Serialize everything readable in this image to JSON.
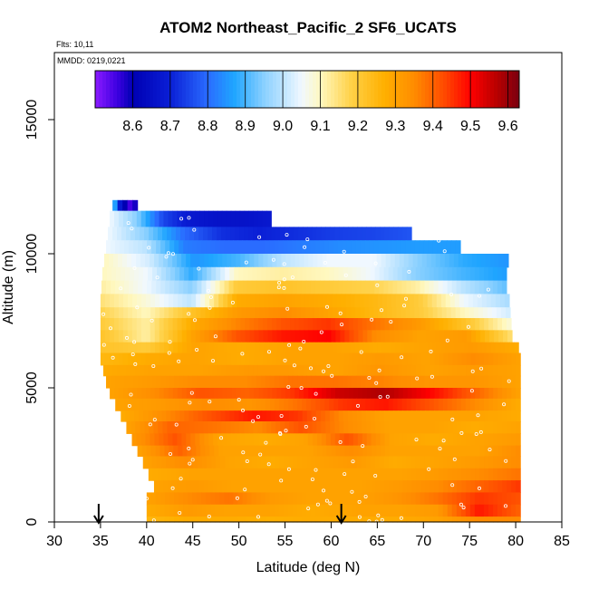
{
  "chart_data": {
    "type": "heatmap",
    "title": "ATOM2 Northeast_Pacific_2 SF6_UCATS",
    "flights_label": "Flts: 10,11",
    "mmdd_label": "MMDD: 0219,0221",
    "xlabel": "Latitude (deg N)",
    "ylabel": "Altitude (m)",
    "xlim": [
      30,
      85
    ],
    "ylim": [
      0,
      17500
    ],
    "x_ticks": [
      "30",
      "35",
      "40",
      "45",
      "50",
      "55",
      "60",
      "65",
      "70",
      "75",
      "80",
      "85"
    ],
    "y_ticks": [
      "0",
      "5000",
      "10000",
      "15000"
    ],
    "colorbar": {
      "min": 8.5,
      "max": 9.63,
      "ticks": [
        "8.6",
        "8.7",
        "8.8",
        "8.9",
        "9.0",
        "9.1",
        "9.2",
        "9.3",
        "9.4",
        "9.5",
        "9.6"
      ],
      "stops": [
        [
          8.5,
          "#8c1aff"
        ],
        [
          8.56,
          "#3b00e0"
        ],
        [
          8.6,
          "#0000b3"
        ],
        [
          8.7,
          "#0a1fd6"
        ],
        [
          8.8,
          "#2a6cff"
        ],
        [
          8.87,
          "#1fa5ff"
        ],
        [
          8.95,
          "#8ad0ff"
        ],
        [
          9.05,
          "#f0f8ff"
        ],
        [
          9.1,
          "#fff8c0"
        ],
        [
          9.18,
          "#ffd24a"
        ],
        [
          9.27,
          "#ffb000"
        ],
        [
          9.35,
          "#ff8c00"
        ],
        [
          9.43,
          "#ff4a00"
        ],
        [
          9.5,
          "#ff0000"
        ],
        [
          9.57,
          "#b80000"
        ],
        [
          9.63,
          "#7a0010"
        ]
      ]
    },
    "arrows_at_latitude": [
      34.8,
      61.1
    ],
    "layers": [
      {
        "alt_bottom": 11600,
        "alt_top": 12000,
        "lat_start": 36.3,
        "lat_end": 39.0,
        "values": [
          8.95,
          8.65,
          8.55,
          8.6
        ]
      },
      {
        "alt_bottom": 11000,
        "alt_top": 11600,
        "lat_start": 36.0,
        "lat_end": 53.5,
        "values": [
          9.05,
          8.95,
          8.75,
          8.68,
          8.66,
          8.66,
          8.68
        ]
      },
      {
        "alt_bottom": 10500,
        "alt_top": 11000,
        "lat_start": 35.8,
        "lat_end": 68.7,
        "values": [
          9.05,
          8.95,
          8.8,
          8.72,
          8.7,
          8.72,
          8.74,
          8.75,
          8.77
        ]
      },
      {
        "alt_bottom": 10000,
        "alt_top": 10500,
        "lat_start": 35.6,
        "lat_end": 74.0,
        "values": [
          9.05,
          9.0,
          8.82,
          8.8,
          8.8,
          8.82,
          8.84,
          8.85,
          8.86,
          8.86
        ]
      },
      {
        "alt_bottom": 9500,
        "alt_top": 10000,
        "lat_start": 35.4,
        "lat_end": 79.2,
        "values": [
          9.1,
          9.02,
          8.85,
          8.9,
          9.0,
          9.05,
          9.05,
          8.95,
          8.88,
          8.85
        ]
      },
      {
        "alt_bottom": 9000,
        "alt_top": 9500,
        "lat_start": 35.2,
        "lat_end": 79.0,
        "values": [
          9.1,
          9.05,
          8.88,
          9.1,
          9.12,
          9.1,
          9.05,
          8.95,
          8.9,
          8.86
        ]
      },
      {
        "alt_bottom": 8500,
        "alt_top": 9000,
        "lat_start": 35.1,
        "lat_end": 79.0,
        "values": [
          9.12,
          9.05,
          8.95,
          9.2,
          9.22,
          9.2,
          9.18,
          9.12,
          9.0,
          8.92
        ]
      },
      {
        "alt_bottom": 8000,
        "alt_top": 8500,
        "lat_start": 35.0,
        "lat_end": 79.3,
        "values": [
          9.15,
          9.08,
          9.0,
          9.28,
          9.3,
          9.28,
          9.25,
          9.2,
          9.05,
          8.98
        ]
      },
      {
        "alt_bottom": 7600,
        "alt_top": 8000,
        "lat_start": 35.0,
        "lat_end": 79.4,
        "values": [
          9.18,
          9.1,
          9.22,
          9.32,
          9.35,
          9.3,
          9.25,
          9.2,
          9.1,
          9.02
        ]
      },
      {
        "alt_bottom": 7150,
        "alt_top": 7600,
        "lat_start": 35.0,
        "lat_end": 79.5,
        "values": [
          9.2,
          9.12,
          9.28,
          9.36,
          9.42,
          9.45,
          9.38,
          9.32,
          9.22,
          9.08
        ]
      },
      {
        "alt_bottom": 6700,
        "alt_top": 7150,
        "lat_start": 35.0,
        "lat_end": 79.6,
        "values": [
          9.22,
          9.12,
          9.3,
          9.42,
          9.48,
          9.5,
          9.35,
          9.3,
          9.32,
          9.15
        ]
      },
      {
        "alt_bottom": 6300,
        "alt_top": 6700,
        "lat_start": 35.0,
        "lat_end": 80.3,
        "values": [
          9.22,
          9.2,
          9.3,
          9.28,
          9.3,
          9.3,
          9.28,
          9.3,
          9.32,
          9.28
        ]
      },
      {
        "alt_bottom": 5850,
        "alt_top": 6300,
        "lat_start": 35.0,
        "lat_end": 80.5,
        "values": [
          9.25,
          9.28,
          9.3,
          9.28,
          9.3,
          9.3,
          9.32,
          9.3,
          9.35,
          9.3
        ]
      },
      {
        "alt_bottom": 5450,
        "alt_top": 5850,
        "lat_start": 35.3,
        "lat_end": 80.5,
        "values": [
          9.28,
          9.3,
          9.3,
          9.32,
          9.32,
          9.3,
          9.33,
          9.3,
          9.32,
          9.3
        ]
      },
      {
        "alt_bottom": 5000,
        "alt_top": 5450,
        "lat_start": 35.6,
        "lat_end": 80.5,
        "values": [
          9.3,
          9.32,
          9.35,
          9.35,
          9.38,
          9.38,
          9.36,
          9.33,
          9.33,
          9.3
        ]
      },
      {
        "alt_bottom": 4600,
        "alt_top": 5000,
        "lat_start": 36.0,
        "lat_end": 80.5,
        "values": [
          9.3,
          9.35,
          9.42,
          9.4,
          9.45,
          9.55,
          9.58,
          9.5,
          9.4,
          9.3
        ]
      },
      {
        "alt_bottom": 4150,
        "alt_top": 4600,
        "lat_start": 36.6,
        "lat_end": 80.5,
        "values": [
          9.3,
          9.32,
          9.35,
          9.33,
          9.38,
          9.45,
          9.48,
          9.42,
          9.35,
          9.28
        ]
      },
      {
        "alt_bottom": 3750,
        "alt_top": 4150,
        "lat_start": 37.2,
        "lat_end": 80.5,
        "values": [
          9.28,
          9.35,
          9.42,
          9.48,
          9.45,
          9.35,
          9.3,
          9.3,
          9.3,
          9.28
        ]
      },
      {
        "alt_bottom": 3300,
        "alt_top": 3750,
        "lat_start": 37.8,
        "lat_end": 80.5,
        "values": [
          9.3,
          9.4,
          9.38,
          9.35,
          9.42,
          9.35,
          9.3,
          9.3,
          9.28,
          9.3
        ]
      },
      {
        "alt_bottom": 2850,
        "alt_top": 3300,
        "lat_start": 38.4,
        "lat_end": 80.5,
        "values": [
          9.32,
          9.42,
          9.3,
          9.28,
          9.3,
          9.42,
          9.3,
          9.28,
          9.3,
          9.32
        ]
      },
      {
        "alt_bottom": 2450,
        "alt_top": 2850,
        "lat_start": 39.0,
        "lat_end": 80.5,
        "values": [
          9.3,
          9.4,
          9.3,
          9.3,
          9.3,
          9.35,
          9.3,
          9.3,
          9.3,
          9.35
        ]
      },
      {
        "alt_bottom": 2000,
        "alt_top": 2450,
        "lat_start": 39.6,
        "lat_end": 80.5,
        "values": [
          9.3,
          9.35,
          9.3,
          9.28,
          9.3,
          9.32,
          9.28,
          9.3,
          9.32,
          9.35
        ]
      },
      {
        "alt_bottom": 1550,
        "alt_top": 2000,
        "lat_start": 40.2,
        "lat_end": 80.5,
        "values": [
          9.28,
          9.3,
          9.3,
          9.3,
          9.3,
          9.3,
          9.3,
          9.32,
          9.35,
          9.38
        ]
      },
      {
        "alt_bottom": 1100,
        "alt_top": 1550,
        "lat_start": 40.8,
        "lat_end": 80.5,
        "values": [
          9.3,
          9.32,
          9.3,
          9.3,
          9.3,
          9.3,
          9.32,
          9.35,
          9.4,
          9.45
        ]
      },
      {
        "alt_bottom": 650,
        "alt_top": 1100,
        "lat_start": 40.0,
        "lat_end": 80.5,
        "values": [
          9.3,
          9.35,
          9.38,
          9.32,
          9.3,
          9.3,
          9.33,
          9.38,
          9.45,
          9.42
        ]
      },
      {
        "alt_bottom": 200,
        "alt_top": 650,
        "lat_start": 40.0,
        "lat_end": 80.5,
        "values": [
          9.28,
          9.32,
          9.3,
          9.3,
          9.28,
          9.3,
          9.3,
          9.32,
          9.48,
          9.4
        ]
      },
      {
        "alt_bottom": 0,
        "alt_top": 200,
        "lat_start": 40.0,
        "lat_end": 80.5,
        "values": [
          9.25,
          9.28,
          9.28,
          9.27,
          9.28,
          9.28,
          9.28,
          9.3,
          9.35,
          9.35
        ]
      }
    ]
  }
}
